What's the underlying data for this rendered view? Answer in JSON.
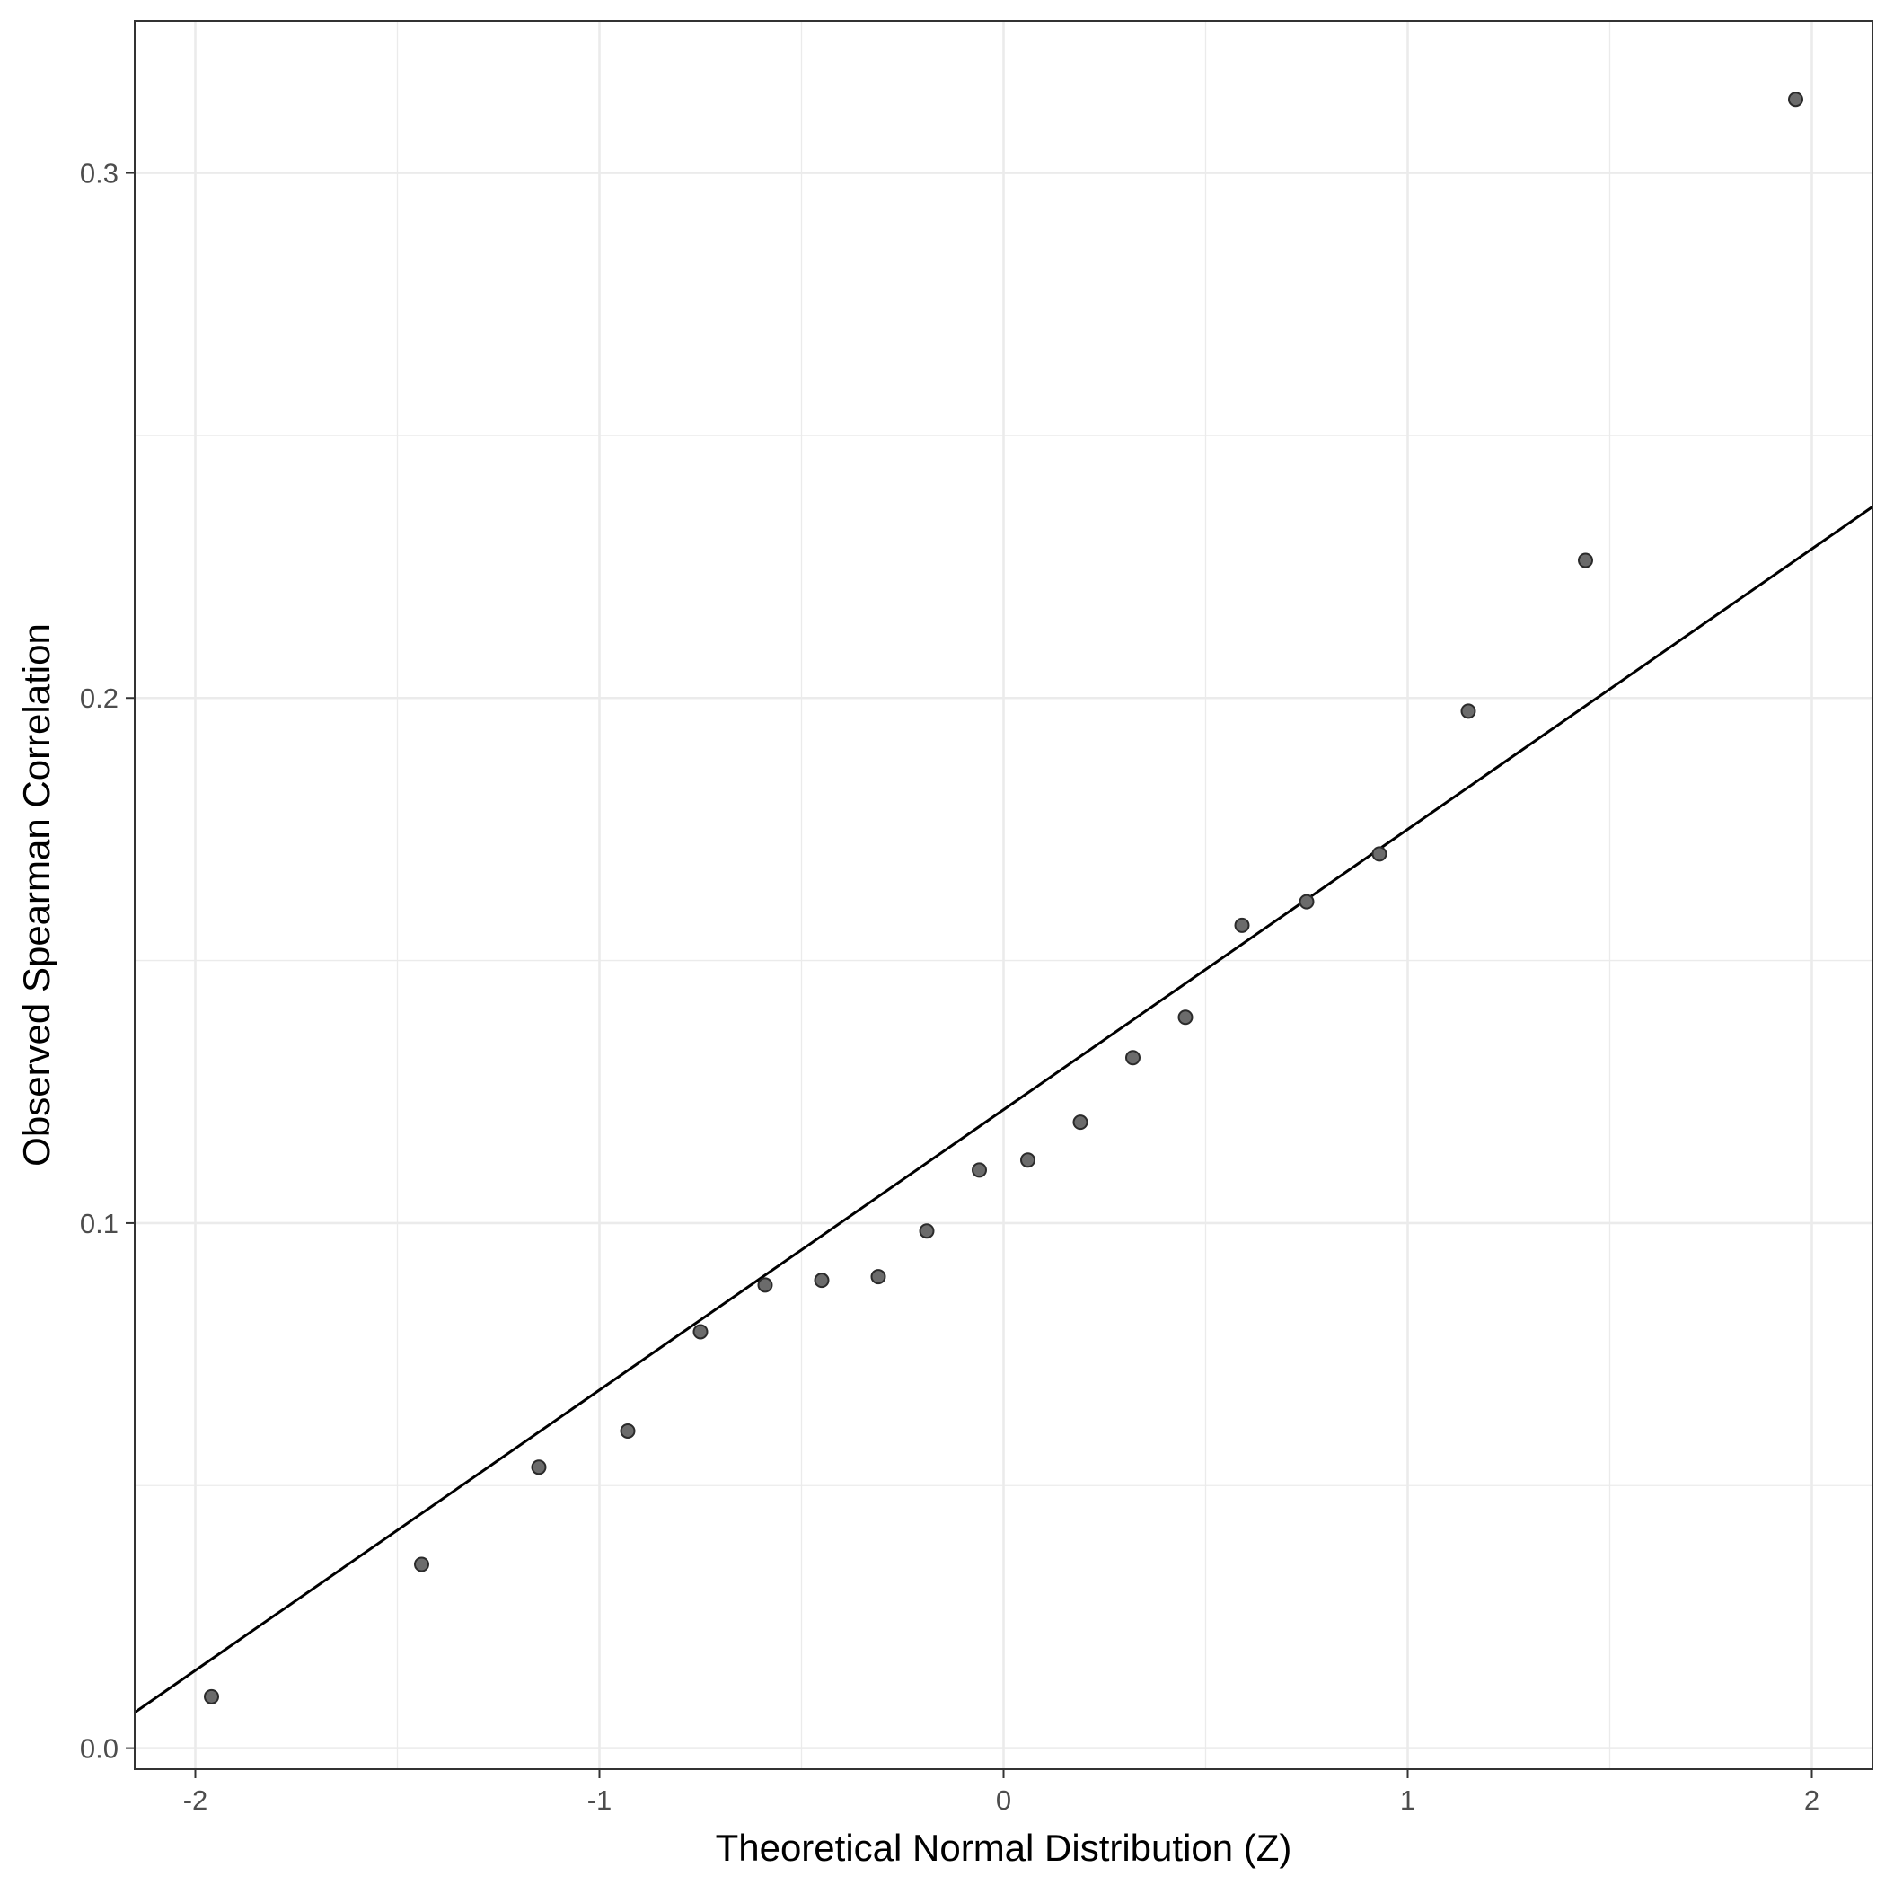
{
  "chart_data": {
    "type": "scatter",
    "title": "",
    "xlabel": "Theoretical Normal Distribution (Z)",
    "ylabel": "Observed Spearman Correlation",
    "xlim": [
      -2.15,
      2.15
    ],
    "ylim": [
      -0.004,
      0.329
    ],
    "x_ticks": [
      -2,
      -1,
      0,
      1,
      2
    ],
    "x_tick_labels": [
      "-2",
      "-1",
      "0",
      "1",
      "2"
    ],
    "y_ticks": [
      0.0,
      0.1,
      0.2,
      0.3
    ],
    "y_tick_labels": [
      "0.0",
      "0.1",
      "0.2",
      "0.3"
    ],
    "grid": true,
    "series": [
      {
        "type": "scatter",
        "points": [
          [
            -1.96,
            0.0098
          ],
          [
            -1.44,
            0.035
          ],
          [
            -1.15,
            0.0535
          ],
          [
            -0.93,
            0.0604
          ],
          [
            -0.75,
            0.0793
          ],
          [
            -0.59,
            0.0882
          ],
          [
            -0.45,
            0.0891
          ],
          [
            -0.31,
            0.0898
          ],
          [
            -0.19,
            0.0985
          ],
          [
            -0.06,
            0.1101
          ],
          [
            0.06,
            0.112
          ],
          [
            0.19,
            0.1192
          ],
          [
            0.32,
            0.1315
          ],
          [
            0.45,
            0.1392
          ],
          [
            0.59,
            0.1567
          ],
          [
            0.75,
            0.1612
          ],
          [
            0.93,
            0.1703
          ],
          [
            1.15,
            0.1975
          ],
          [
            1.44,
            0.2262
          ],
          [
            1.96,
            0.314
          ]
        ]
      },
      {
        "type": "line",
        "points": [
          [
            -2.15,
            0.0068
          ],
          [
            2.15,
            0.2364
          ]
        ]
      }
    ],
    "colors": {
      "point_fill": "#6b6b6b",
      "point_stroke": "#2b2b2b",
      "line": "#000000",
      "grid": "#ebebeb",
      "panel_border": "#333333"
    }
  }
}
